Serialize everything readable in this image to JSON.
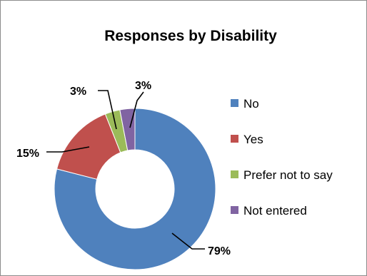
{
  "chart_data": {
    "type": "pie",
    "subtype": "doughnut",
    "title": "Responses by Disability",
    "categories": [
      "No",
      "Yes",
      "Prefer not to say",
      "Not entered"
    ],
    "values": [
      79,
      15,
      3,
      3
    ],
    "unit": "%",
    "data_labels": [
      "79%",
      "15%",
      "3%",
      "3%"
    ],
    "colors": [
      "#4f81bd",
      "#c0504d",
      "#9bbb59",
      "#8064a2"
    ],
    "legend": {
      "placement": "right",
      "entries": [
        "No",
        "Yes",
        "Prefer not to say",
        "Not entered"
      ]
    },
    "start_angle_deg": 0,
    "direction": "clockwise"
  }
}
